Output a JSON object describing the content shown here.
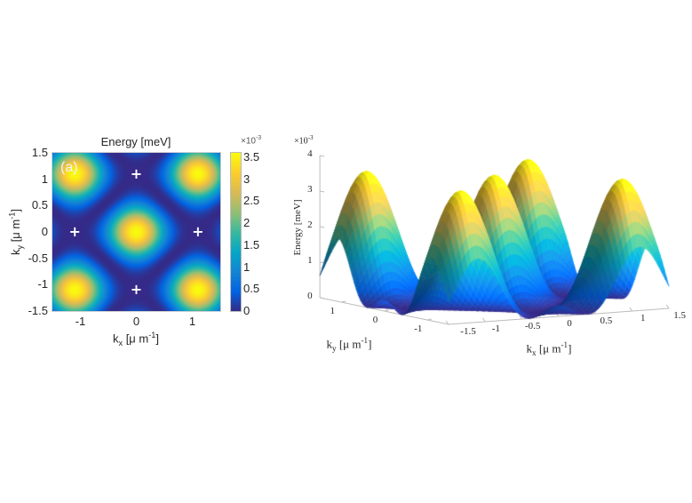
{
  "chart_data": [
    {
      "type": "heatmap",
      "title": "Energy [meV]",
      "panel_label": "(a)",
      "xlabel": {
        "main": "k",
        "sub": "x",
        "unit": " [μ m",
        "sup": "-1",
        "end": "]"
      },
      "ylabel": {
        "main": "k",
        "sub": "y",
        "unit": " [μ m",
        "sup": "-1",
        "end": "]"
      },
      "xlim": [
        -1.5,
        1.5
      ],
      "ylim": [
        -1.5,
        1.5
      ],
      "xticks": [
        "-1",
        "0",
        "1"
      ],
      "xtick_values": [
        -1,
        0,
        1
      ],
      "yticks": [
        "1.5",
        "1",
        "0.5",
        "0",
        "-0.5",
        "-1",
        "-1.5"
      ],
      "ytick_values": [
        1.5,
        1,
        0.5,
        0,
        -0.5,
        -1,
        -1.5
      ],
      "colorbar": {
        "exponent_label": "×10",
        "exponent": "-3",
        "range": [
          0,
          3.6
        ],
        "ticks": [
          "0",
          "0.5",
          "1",
          "1.5",
          "2",
          "2.5",
          "3",
          "3.5"
        ],
        "tick_values": [
          0,
          0.5,
          1,
          1.5,
          2,
          2.5,
          3,
          3.5
        ],
        "colormap": "parula"
      },
      "peak_value": 3.6,
      "peak_location": [
        0,
        0
      ],
      "minima_markers": [
        [
          0,
          1.1
        ],
        [
          -1.1,
          0
        ],
        [
          1.1,
          0
        ],
        [
          0,
          -1.1
        ]
      ],
      "marker_symbol": "+",
      "marker_color": "#ffffff"
    },
    {
      "type": "surface",
      "zlabel": "Energy [meV]",
      "z_exponent_label": "×10",
      "z_exponent": "-3",
      "xlabel": {
        "main": "k",
        "sub": "x",
        "unit": " [μ m",
        "sup": "-1",
        "end": "]"
      },
      "ylabel": {
        "main": "k",
        "sub": "y",
        "unit": " [μ m",
        "sup": "-1",
        "end": "]"
      },
      "xlim": [
        -1.5,
        1.5
      ],
      "ylim": [
        -1.5,
        1.5
      ],
      "zlim": [
        0,
        4
      ],
      "xticks": [
        "-1.5",
        "-1",
        "-0.5",
        "0",
        "0.5",
        "1",
        "1.5"
      ],
      "xtick_values": [
        -1.5,
        -1,
        -0.5,
        0,
        0.5,
        1,
        1.5
      ],
      "yticks": [
        "1",
        "0",
        "-1"
      ],
      "ytick_values": [
        1,
        0,
        -1
      ],
      "zticks": [
        "0",
        "1",
        "2",
        "3",
        "4"
      ],
      "ztick_values": [
        0,
        1,
        2,
        3,
        4
      ],
      "peak_value": 3.6,
      "colormap": "parula"
    }
  ]
}
